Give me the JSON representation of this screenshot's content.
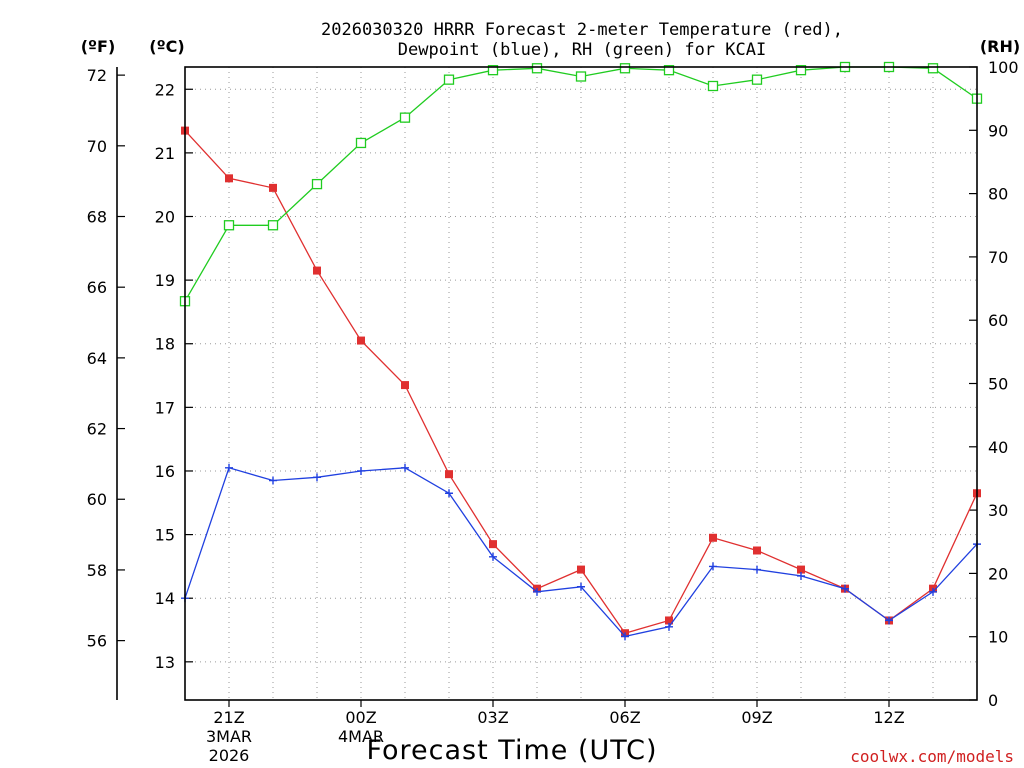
{
  "chart_data": {
    "type": "line",
    "title_line1": "2026030320 HRRR Forecast 2-meter Temperature (red),",
    "title_line2": "Dewpoint (blue), RH (green) for KCAI",
    "xlabel": "Forecast Time (UTC)",
    "watermark": "coolwx.com/models",
    "axis_units": {
      "fahrenheit": "(ºF)",
      "celsius": "(ºC)",
      "rh": "(RH)"
    },
    "x_hours": [
      20,
      21,
      22,
      23,
      24,
      25,
      26,
      27,
      28,
      29,
      30,
      31,
      32,
      33,
      34,
      35,
      36,
      37,
      38
    ],
    "x_ticks": [
      {
        "hour": 21,
        "label": "21Z",
        "sub1": "3MAR",
        "sub2": "2026"
      },
      {
        "hour": 24,
        "label": "00Z",
        "sub1": "4MAR",
        "sub2": ""
      },
      {
        "hour": 27,
        "label": "03Z",
        "sub1": "",
        "sub2": ""
      },
      {
        "hour": 30,
        "label": "06Z",
        "sub1": "",
        "sub2": ""
      },
      {
        "hour": 33,
        "label": "09Z",
        "sub1": "",
        "sub2": ""
      },
      {
        "hour": 36,
        "label": "12Z",
        "sub1": "",
        "sub2": ""
      }
    ],
    "celsius_range": [
      12.4,
      22.35
    ],
    "celsius_ticks": [
      13,
      14,
      15,
      16,
      17,
      18,
      19,
      20,
      21,
      22
    ],
    "fahrenheit_ticks": [
      56,
      58,
      60,
      62,
      64,
      66,
      68,
      70,
      72
    ],
    "rh_range": [
      0,
      100
    ],
    "rh_ticks": [
      0,
      10,
      20,
      30,
      40,
      50,
      60,
      70,
      80,
      90,
      100
    ],
    "series": [
      {
        "name": "Temperature",
        "color": "#e03030",
        "marker": "filled-square",
        "axis": "celsius",
        "values": [
          21.35,
          20.6,
          20.45,
          19.15,
          18.05,
          17.35,
          15.95,
          14.85,
          14.15,
          14.45,
          13.45,
          13.65,
          14.95,
          14.75,
          14.45,
          14.15,
          13.65,
          14.15,
          15.65
        ]
      },
      {
        "name": "Dewpoint",
        "color": "#2040e0",
        "marker": "plus",
        "axis": "celsius",
        "values": [
          14.0,
          16.05,
          15.85,
          15.9,
          16.0,
          16.05,
          15.65,
          14.65,
          14.1,
          14.18,
          13.4,
          13.55,
          14.5,
          14.45,
          14.35,
          14.15,
          13.65,
          14.1,
          14.85
        ]
      },
      {
        "name": "RH",
        "color": "#20cc20",
        "marker": "open-square",
        "axis": "rh",
        "values": [
          63,
          75,
          75,
          81.5,
          88,
          92,
          98,
          99.5,
          99.8,
          98.5,
          99.8,
          99.5,
          97,
          98,
          99.5,
          100,
          100,
          99.8,
          95
        ]
      }
    ]
  }
}
